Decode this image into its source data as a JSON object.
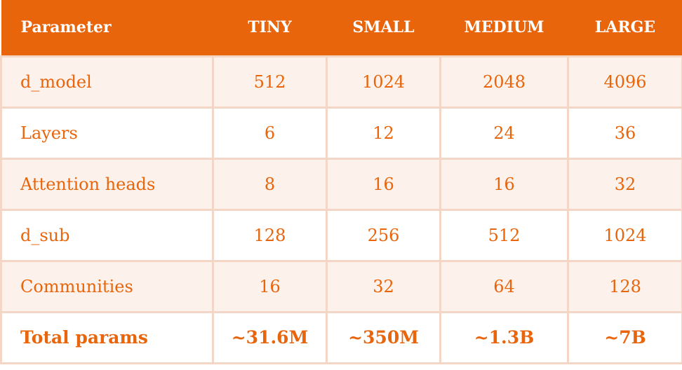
{
  "header": {
    "parameter": "Parameter",
    "tiny": "TINY",
    "small": "SMALL",
    "medium": "MEDIUM",
    "large": "LARGE"
  },
  "rows": [
    {
      "label": "d_model",
      "tiny": "512",
      "small": "1024",
      "medium": "2048",
      "large": "4096"
    },
    {
      "label": "Layers",
      "tiny": "6",
      "small": "12",
      "medium": "24",
      "large": "36"
    },
    {
      "label": "Attention heads",
      "tiny": "8",
      "small": "16",
      "medium": "16",
      "large": "32"
    },
    {
      "label": "d_sub",
      "tiny": "128",
      "small": "256",
      "medium": "512",
      "large": "1024"
    },
    {
      "label": "Communities",
      "tiny": "16",
      "small": "32",
      "medium": "64",
      "large": "128"
    },
    {
      "label": "Total params",
      "tiny": "~31.6M",
      "small": "~350M",
      "medium": "~1.3B",
      "large": "~7B"
    }
  ],
  "colors": {
    "header_bg": "#e8650c",
    "header_text": "#ffffff",
    "cell_text": "#e8650c",
    "shaded_row_bg": "#fdf1eb",
    "border": "#f3d6c6"
  }
}
